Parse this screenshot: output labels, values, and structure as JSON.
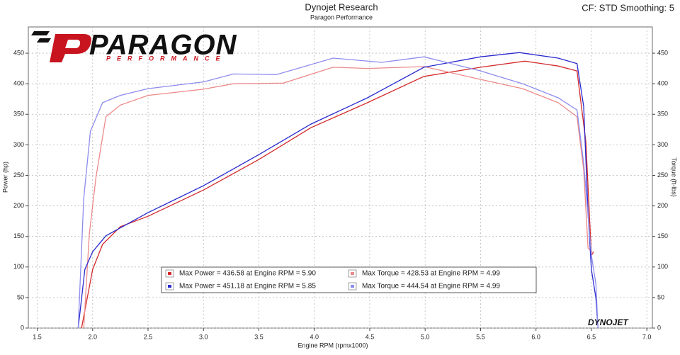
{
  "chart_data": {
    "type": "line",
    "title": "Dynojet Research",
    "subtitle": "Paragon Performance",
    "corner_note": "CF: STD Smoothing: 5",
    "x_label": "Engine RPM (rpmx1000)",
    "y_label": "Power (hp)",
    "y2_label": "Torque (ft-lbs)",
    "logo_text": "PARAGON",
    "logo_subtext": "PERFORMANCE",
    "brand_text": "DYNOJET",
    "grid": true,
    "xlim": [
      1.42,
      7.05
    ],
    "ylim": [
      0,
      493
    ],
    "y2lim": [
      0,
      493
    ],
    "xticks": [
      1.5,
      {
        "value": 2,
        "label": "2.0"
      },
      2.5,
      {
        "value": 3,
        "label": "3.0"
      },
      3.5,
      {
        "value": 4,
        "label": "4.0"
      },
      4.5,
      {
        "value": 5,
        "label": "5.0"
      },
      5.5,
      {
        "value": 6,
        "label": "6.0"
      },
      6.5,
      {
        "value": 7,
        "label": "7.0"
      }
    ],
    "yticks": [
      0,
      50,
      100,
      150,
      200,
      250,
      300,
      350,
      400,
      450
    ],
    "y2ticks": [
      0,
      50,
      100,
      150,
      200,
      250,
      300,
      350,
      400,
      450
    ],
    "series": [
      {
        "name": "Max Power = 436.58 at Engine RPM = 5.90",
        "color": "#d42a2a",
        "x": [
          1.9,
          2.0,
          2.09,
          2.25,
          2.5,
          3.0,
          3.5,
          3.97,
          4.48,
          4.99,
          5.5,
          5.9,
          6.2,
          6.37,
          6.45,
          6.5,
          6.52
        ],
        "values": [
          0,
          96,
          137,
          166,
          183,
          226,
          276,
          328,
          369,
          412,
          427,
          437,
          429,
          421,
          305,
          119,
          125
        ]
      },
      {
        "name": "Max Torque = 428.53 at Engine RPM = 4.99",
        "color": "#ec8a8a",
        "axis": "y2",
        "x": [
          1.92,
          1.97,
          2.03,
          2.12,
          2.25,
          2.5,
          3.0,
          3.27,
          3.72,
          4.17,
          4.48,
          4.99,
          5.5,
          5.88,
          6.2,
          6.37,
          6.43,
          6.47,
          6.52
        ],
        "values": [
          0,
          154,
          247,
          346,
          365,
          381,
          391,
          400,
          401,
          427,
          425,
          428,
          407,
          392,
          369,
          346,
          259,
          131,
          122
        ]
      },
      {
        "name": "Max Power = 451.18 at Engine RPM = 5.85",
        "color": "#2a2ad0",
        "x": [
          1.87,
          1.93,
          2.0,
          2.12,
          2.5,
          3.0,
          3.5,
          3.97,
          4.48,
          4.99,
          5.5,
          5.85,
          6.2,
          6.37,
          6.43,
          6.47,
          6.5,
          6.54,
          6.56
        ],
        "values": [
          0,
          96,
          125,
          151,
          189,
          233,
          284,
          334,
          377,
          427,
          444,
          451,
          442,
          433,
          363,
          189,
          96,
          50,
          0
        ]
      },
      {
        "name": "Max Torque = 444.54 at Engine RPM = 4.99",
        "color": "#8c8ced",
        "axis": "y2",
        "x": [
          1.87,
          1.92,
          1.98,
          2.09,
          2.25,
          2.5,
          3.0,
          3.27,
          3.66,
          4.17,
          4.61,
          4.99,
          5.5,
          5.88,
          6.2,
          6.37,
          6.43,
          6.5,
          6.54,
          6.56
        ],
        "values": [
          0,
          212,
          322,
          369,
          381,
          392,
          403,
          416,
          415,
          442,
          435,
          444,
          421,
          400,
          377,
          357,
          270,
          119,
          73,
          0
        ]
      }
    ]
  }
}
